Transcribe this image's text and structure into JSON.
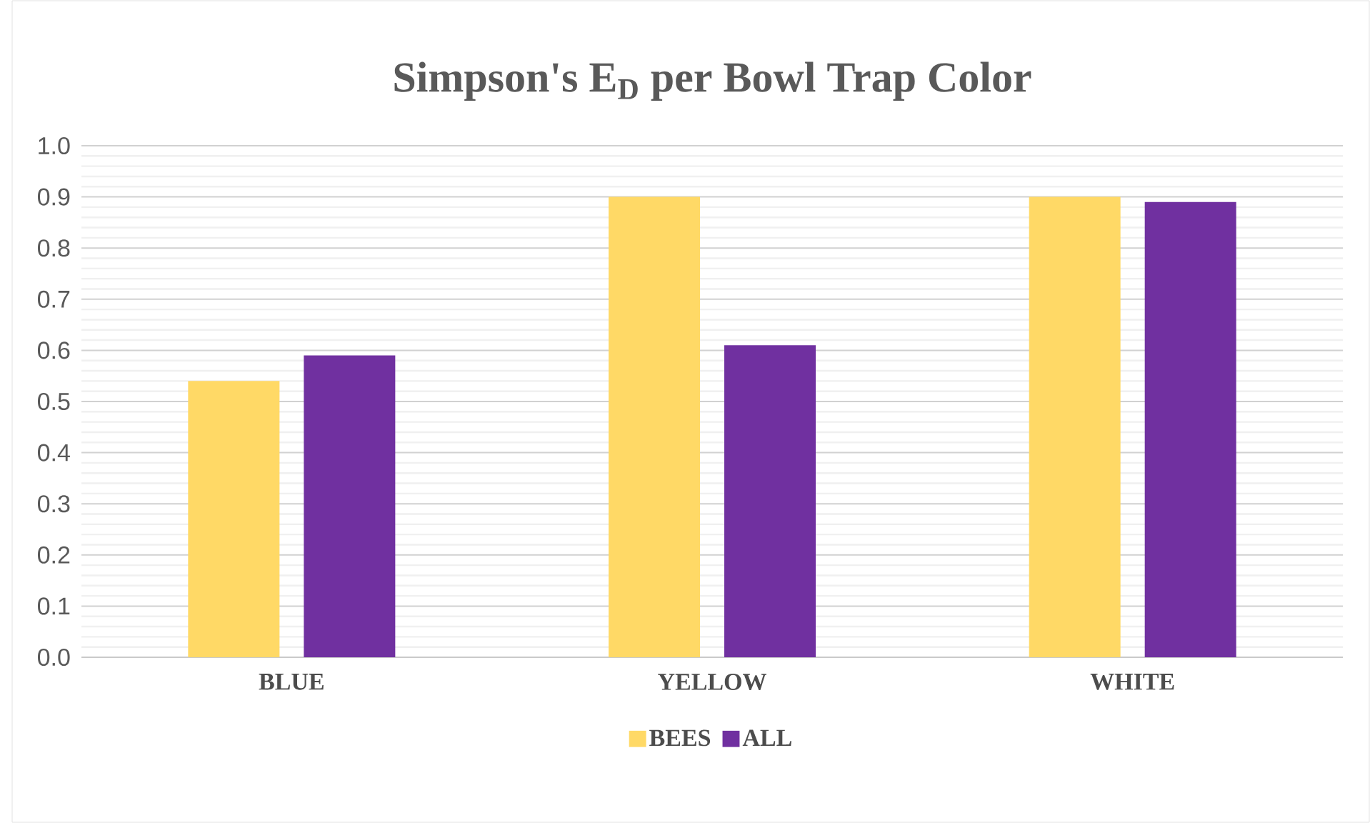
{
  "chart_data": {
    "type": "bar",
    "title": "Simpson's E$_{D}$ per Bowl Trap Color",
    "categories": [
      "BLUE",
      "YELLOW",
      "WHITE"
    ],
    "series": [
      {
        "name": "BEES",
        "color": "#ffd966",
        "values": [
          0.54,
          0.9,
          0.9
        ]
      },
      {
        "name": "ALL",
        "color": "#7030a0",
        "values": [
          0.59,
          0.61,
          0.89
        ]
      }
    ],
    "ylim": [
      0,
      1.0
    ],
    "yticks": [
      {
        "value": 0,
        "label": "0.0"
      },
      {
        "value": 0.1,
        "label": "0.1"
      },
      {
        "value": 0.2,
        "label": "0.2"
      },
      {
        "value": 0.3,
        "label": "0.3"
      },
      {
        "value": 0.4,
        "label": "0.4"
      },
      {
        "value": 0.5,
        "label": "0.5"
      },
      {
        "value": 0.6,
        "label": "0.6"
      },
      {
        "value": 0.7,
        "label": "0.7"
      },
      {
        "value": 0.8,
        "label": "0.8"
      },
      {
        "value": 0.9,
        "label": "0.9"
      },
      {
        "value": 1.0,
        "label": "1.0"
      }
    ],
    "grid": "y",
    "legend": "bottom"
  }
}
